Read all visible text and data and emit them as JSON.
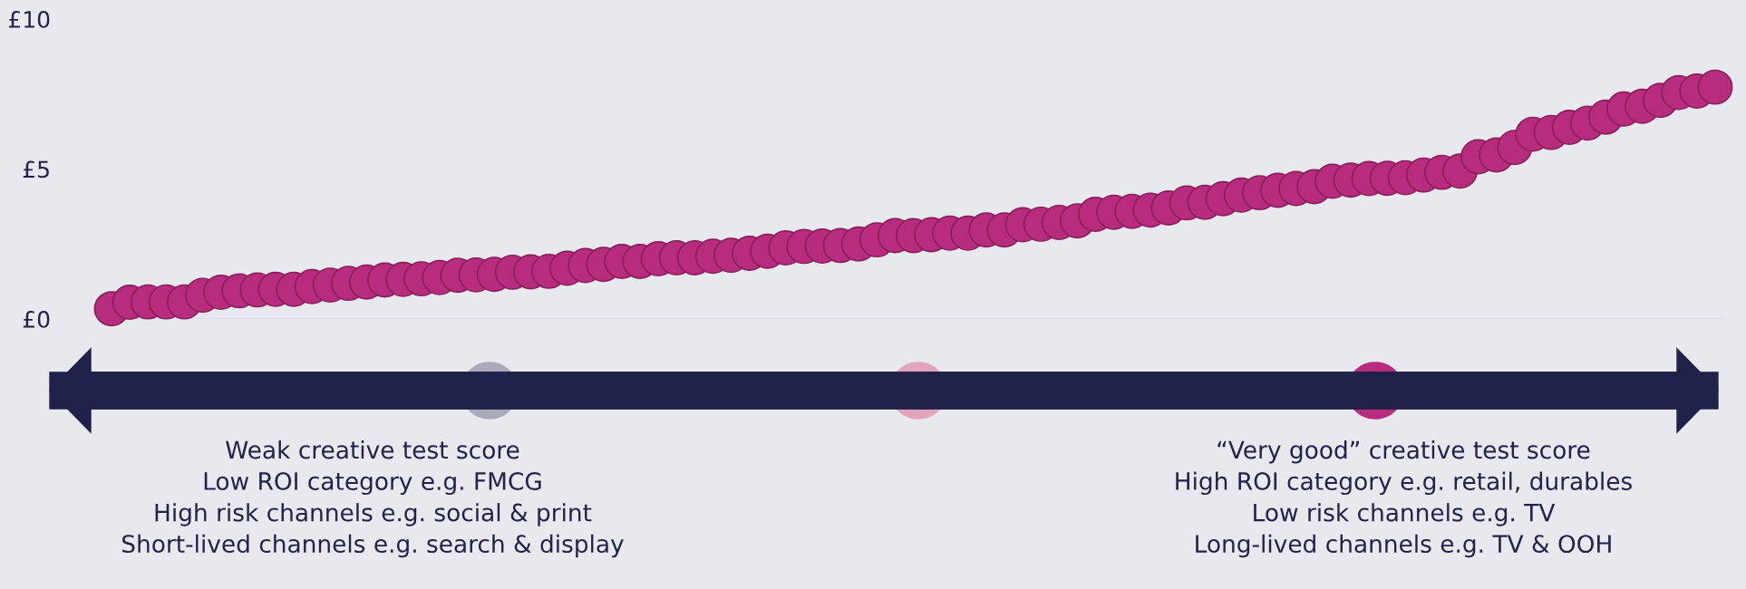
{
  "chart_data": {
    "type": "scatter",
    "categories": [
      null,
      null,
      null,
      null,
      null,
      null,
      null,
      null,
      null,
      null,
      null,
      null,
      null,
      null,
      null,
      null,
      null,
      null,
      null,
      null,
      null,
      null,
      null,
      null,
      null,
      null,
      null,
      null,
      null,
      null,
      null,
      null,
      null,
      null,
      null,
      null,
      null,
      null,
      null,
      null,
      null,
      null,
      null,
      null,
      null,
      null,
      null,
      null,
      null,
      null,
      null,
      null,
      null,
      null,
      null,
      null,
      null,
      null,
      null,
      null,
      null,
      null,
      null,
      null,
      null,
      null,
      null,
      null,
      null,
      null,
      null,
      null,
      null,
      null,
      null,
      null,
      null,
      null,
      null,
      null,
      null,
      null,
      null,
      null,
      null,
      null,
      null,
      null,
      null
    ],
    "series": [
      {
        "color": "#b82c7d",
        "values": [
          0.34,
          0.56,
          0.57,
          0.57,
          0.57,
          0.79,
          0.89,
          0.94,
          0.97,
          0.99,
          0.99,
          1.08,
          1.13,
          1.19,
          1.23,
          1.3,
          1.32,
          1.34,
          1.38,
          1.46,
          1.47,
          1.49,
          1.56,
          1.57,
          1.59,
          1.69,
          1.78,
          1.82,
          1.92,
          1.92,
          2.01,
          2.04,
          2.04,
          2.09,
          2.12,
          2.19,
          2.26,
          2.37,
          2.42,
          2.43,
          2.45,
          2.5,
          2.64,
          2.78,
          2.78,
          2.81,
          2.86,
          2.86,
          2.97,
          2.97,
          3.14,
          3.16,
          3.22,
          3.27,
          3.49,
          3.56,
          3.59,
          3.63,
          3.7,
          3.87,
          3.89,
          4.01,
          4.13,
          4.21,
          4.29,
          4.35,
          4.41,
          4.59,
          4.63,
          4.68,
          4.69,
          4.71,
          4.8,
          4.89,
          4.93,
          5.41,
          5.47,
          5.72,
          6.16,
          6.22,
          6.39,
          6.53,
          6.73,
          7.0,
          7.09,
          7.29,
          7.55,
          7.6,
          7.73
        ]
      }
    ],
    "marker": "circle",
    "ylim": [
      0,
      10
    ],
    "yticks": [
      {
        "value": 0,
        "label": "£0"
      },
      {
        "value": 5,
        "label": "£5"
      },
      {
        "value": 10,
        "label": "£10"
      }
    ],
    "tick_labels": "y",
    "grid": false,
    "ref_lines": [
      {
        "axis": "y",
        "value": 0,
        "color": "#d8d6ee"
      }
    ],
    "annotations": [
      "Weak creative test score\nLow ROI category e.g. FMCG\nHigh risk channels e.g. social & print\nShort-lived channels e.g. search & display",
      "“Very good” creative test score\nHigh ROI category e.g. retail, durables\nLow risk channels e.g. TV\nLong-lived channels e.g. TV & OOH"
    ]
  }
}
